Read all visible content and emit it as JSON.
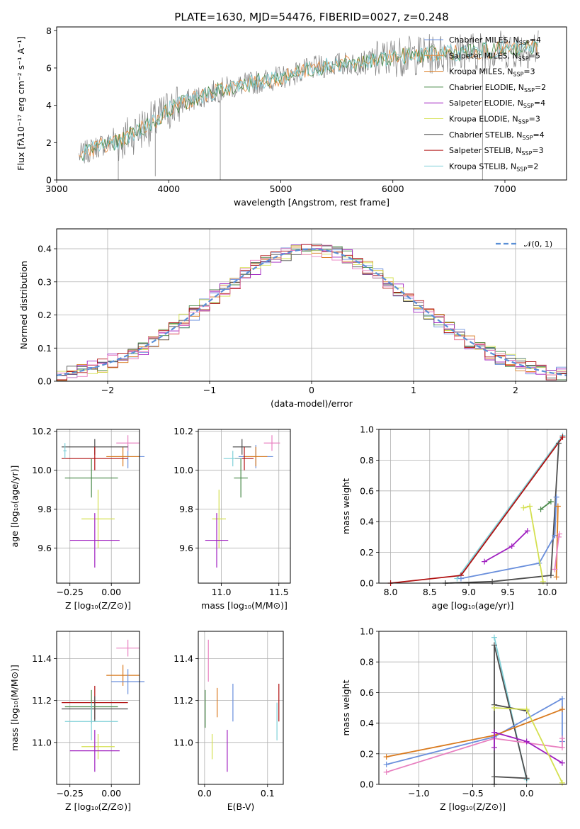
{
  "title": "PLATE=1630, MJD=54476, FIBERID=0027, z=0.248",
  "colors": {
    "Chabrier MILES": "#6a8fdc",
    "Salpeter MILES": "#e8883a",
    "Kroupa MILES": "#d97a1e",
    "Chabrier ELODIE": "#4a8a4a",
    "Salpeter ELODIE": "#a020c0",
    "Kroupa ELODIE": "#d4e050",
    "Chabrier STELIB": "#4d4d4d",
    "Salpeter STELIB": "#b01010",
    "Kroupa STELIB": "#7fd0d8",
    "Pink": "#e880c0",
    "Normal": "#5a8fd6"
  },
  "chart_data": [
    {
      "type": "line",
      "id": "spectrum",
      "title": "PLATE=1630, MJD=54476, FIBERID=0027, z=0.248",
      "xlabel": "wavelength [Angstrom, rest frame]",
      "ylabel": "Flux [fλ10⁻¹⁷ erg cm⁻² s⁻¹ A⁻¹]",
      "xlim": [
        3000,
        7550
      ],
      "ylim": [
        0,
        8.2
      ],
      "xticks": [
        3000,
        4000,
        5000,
        6000,
        7000
      ],
      "yticks": [
        0,
        2,
        4,
        6,
        8
      ],
      "continuum": [
        [
          3200,
          1.3
        ],
        [
          3400,
          1.9
        ],
        [
          3550,
          2.0
        ],
        [
          3700,
          2.6
        ],
        [
          3900,
          3.2
        ],
        [
          4000,
          3.8
        ],
        [
          4200,
          4.3
        ],
        [
          4500,
          4.9
        ],
        [
          5000,
          5.5
        ],
        [
          5300,
          6.0
        ],
        [
          5500,
          6.2
        ],
        [
          5800,
          6.3
        ],
        [
          6000,
          6.6
        ],
        [
          6500,
          6.8
        ],
        [
          7000,
          7.0
        ],
        [
          7300,
          7.1
        ]
      ],
      "legend": [
        {
          "name": "Chabrier MILES, N",
          "sub": "SSP",
          "n": "=4"
        },
        {
          "name": "Salpeter MILES, N",
          "sub": "SSP",
          "n": "=5"
        },
        {
          "name": "Kroupa MILES, N",
          "sub": "SSP",
          "n": "=3"
        },
        {
          "name": "Chabrier ELODIE, N",
          "sub": "SSP",
          "n": "=2"
        },
        {
          "name": "Salpeter ELODIE, N",
          "sub": "SSP",
          "n": "=4"
        },
        {
          "name": "Kroupa ELODIE, N",
          "sub": "SSP",
          "n": "=3"
        },
        {
          "name": "Chabrier STELIB, N",
          "sub": "SSP",
          "n": "=4"
        },
        {
          "name": "Salpeter STELIB, N",
          "sub": "SSP",
          "n": "=3"
        },
        {
          "name": "Kroupa STELIB, N",
          "sub": "SSP",
          "n": "=2"
        }
      ],
      "legend_position": "upper right"
    },
    {
      "type": "step",
      "id": "hist",
      "xlabel": "(data-model)/error",
      "ylabel": "Normed distribution",
      "xlim": [
        -2.5,
        2.5
      ],
      "ylim": [
        0,
        0.46
      ],
      "xticks": [
        -2,
        -1,
        0,
        1,
        2
      ],
      "yticks": [
        0.0,
        0.1,
        0.2,
        0.3,
        0.4
      ],
      "legend": "𝒩(0, 1)",
      "legend_position": "upper right",
      "grid": true
    },
    {
      "type": "errorbar",
      "id": "age_vs_Z",
      "xlabel": "Z [log₁₀(Z/Z⊙)]",
      "ylabel": "age  [log₁₀(age/yr)]",
      "xlim": [
        -0.33,
        0.17
      ],
      "ylim": [
        9.42,
        10.21
      ],
      "xticks": [
        -0.25,
        0.0
      ],
      "yticks": [
        9.6,
        9.8,
        10.0,
        10.2
      ],
      "grid": true,
      "points": [
        {
          "c": "Chabrier MILES",
          "x": 0.1,
          "y": 10.07,
          "xe": 0.1,
          "ye": 0.06
        },
        {
          "c": "Pink",
          "x": 0.1,
          "y": 10.14,
          "xe": 0.07,
          "ye": 0.04
        },
        {
          "c": "Kroupa MILES",
          "x": 0.07,
          "y": 10.07,
          "xe": 0.1,
          "ye": 0.05
        },
        {
          "c": "Chabrier STELIB",
          "x": -0.1,
          "y": 10.12,
          "xe": 0.2,
          "ye": 0.04
        },
        {
          "c": "Salpeter STELIB",
          "x": -0.1,
          "y": 10.06,
          "xe": 0.2,
          "ye": 0.06
        },
        {
          "c": "Kroupa STELIB",
          "x": -0.28,
          "y": 10.1,
          "xe": 0.01,
          "ye": 0.04
        },
        {
          "c": "Chabrier ELODIE",
          "x": -0.12,
          "y": 9.96,
          "xe": 0.16,
          "ye": 0.1
        },
        {
          "c": "Kroupa ELODIE",
          "x": -0.08,
          "y": 9.75,
          "xe": 0.1,
          "ye": 0.15
        },
        {
          "c": "Salpeter ELODIE",
          "x": -0.1,
          "y": 9.64,
          "xe": 0.15,
          "ye": 0.14
        }
      ]
    },
    {
      "type": "errorbar",
      "id": "age_vs_mass",
      "xlabel": "mass [log₁₀(M/M⊙)]",
      "ylabel": "",
      "xlim": [
        10.8,
        11.6
      ],
      "ylim": [
        9.42,
        10.21
      ],
      "xticks": [
        11.0,
        11.5
      ],
      "yticks": [
        9.6,
        9.8,
        10.0,
        10.2
      ],
      "grid": true,
      "points": [
        {
          "c": "Chabrier MILES",
          "x": 11.3,
          "y": 10.07,
          "xe": 0.15,
          "ye": 0.06
        },
        {
          "c": "Pink",
          "x": 11.44,
          "y": 10.14,
          "xe": 0.07,
          "ye": 0.04
        },
        {
          "c": "Kroupa MILES",
          "x": 11.3,
          "y": 10.07,
          "xe": 0.1,
          "ye": 0.05
        },
        {
          "c": "Chabrier STELIB",
          "x": 11.18,
          "y": 10.12,
          "xe": 0.08,
          "ye": 0.04
        },
        {
          "c": "Salpeter STELIB",
          "x": 11.2,
          "y": 10.06,
          "xe": 0.08,
          "ye": 0.06
        },
        {
          "c": "Kroupa STELIB",
          "x": 11.1,
          "y": 10.06,
          "xe": 0.08,
          "ye": 0.04
        },
        {
          "c": "Chabrier ELODIE",
          "x": 11.17,
          "y": 9.96,
          "xe": 0.06,
          "ye": 0.1
        },
        {
          "c": "Kroupa ELODIE",
          "x": 10.98,
          "y": 9.75,
          "xe": 0.06,
          "ye": 0.15
        },
        {
          "c": "Salpeter ELODIE",
          "x": 10.96,
          "y": 9.64,
          "xe": 0.1,
          "ye": 0.14
        }
      ]
    },
    {
      "type": "line",
      "id": "mw_vs_age",
      "xlabel": "age  [log₁₀(age/yr)]",
      "ylabel": "mass weight",
      "xlim": [
        7.85,
        10.25
      ],
      "ylim": [
        0,
        1.0
      ],
      "xticks": [
        8.0,
        8.5,
        9.0,
        9.5,
        10.0
      ],
      "yticks": [
        0.0,
        0.2,
        0.4,
        0.6,
        0.8,
        1.0
      ],
      "grid": true,
      "series": [
        {
          "c": "Kroupa STELIB",
          "points": [
            [
              8.85,
              0.03
            ],
            [
              10.2,
              0.96
            ]
          ]
        },
        {
          "c": "Salpeter STELIB",
          "points": [
            [
              8.0,
              0.0
            ],
            [
              8.9,
              0.05
            ],
            [
              10.2,
              0.95
            ]
          ]
        },
        {
          "c": "Chabrier STELIB",
          "points": [
            [
              8.7,
              0.0
            ],
            [
              9.3,
              0.01
            ],
            [
              10.05,
              0.05
            ],
            [
              10.15,
              0.91
            ]
          ]
        },
        {
          "c": "Chabrier MILES",
          "points": [
            [
              8.9,
              0.03
            ],
            [
              9.9,
              0.13
            ],
            [
              10.1,
              0.31
            ],
            [
              10.12,
              0.56
            ]
          ]
        },
        {
          "c": "Kroupa MILES",
          "points": [
            [
              10.12,
              0.04
            ],
            [
              10.14,
              0.5
            ]
          ]
        },
        {
          "c": "Pink",
          "points": [
            [
              10.1,
              0.09
            ],
            [
              10.15,
              0.3
            ],
            [
              10.16,
              0.32
            ]
          ]
        },
        {
          "c": "Salpeter ELODIE",
          "points": [
            [
              9.2,
              0.14
            ],
            [
              9.55,
              0.24
            ],
            [
              9.75,
              0.34
            ]
          ]
        },
        {
          "c": "Kroupa ELODIE",
          "points": [
            [
              9.7,
              0.49
            ],
            [
              9.78,
              0.5
            ],
            [
              9.95,
              0.01
            ]
          ]
        },
        {
          "c": "Chabrier ELODIE",
          "points": [
            [
              9.92,
              0.48
            ],
            [
              10.05,
              0.53
            ]
          ]
        }
      ]
    },
    {
      "type": "errorbar",
      "id": "mass_vs_Z",
      "xlabel": "Z [log₁₀(Z/Z⊙)]",
      "ylabel": "mass [log₁₀(M/M⊙)]",
      "xlim": [
        -0.33,
        0.17
      ],
      "ylim": [
        10.8,
        11.53
      ],
      "xticks": [
        -0.25,
        0.0
      ],
      "yticks": [
        11.0,
        11.2,
        11.4
      ],
      "grid": true,
      "points": [
        {
          "c": "Pink",
          "x": 0.1,
          "y": 11.45,
          "xe": 0.07,
          "ye": 0.04
        },
        {
          "c": "Kroupa MILES",
          "x": 0.07,
          "y": 11.32,
          "xe": 0.1,
          "ye": 0.05
        },
        {
          "c": "Chabrier MILES",
          "x": 0.1,
          "y": 11.29,
          "xe": 0.1,
          "ye": 0.06
        },
        {
          "c": "Salpeter STELIB",
          "x": -0.1,
          "y": 11.19,
          "xe": 0.2,
          "ye": 0.08
        },
        {
          "c": "Chabrier STELIB",
          "x": -0.1,
          "y": 11.16,
          "xe": 0.2,
          "ye": 0.06
        },
        {
          "c": "Chabrier ELODIE",
          "x": -0.12,
          "y": 11.17,
          "xe": 0.16,
          "ye": 0.08
        },
        {
          "c": "Kroupa STELIB",
          "x": -0.12,
          "y": 11.1,
          "xe": 0.16,
          "ye": 0.09
        },
        {
          "c": "Kroupa ELODIE",
          "x": -0.08,
          "y": 10.98,
          "xe": 0.1,
          "ye": 0.06
        },
        {
          "c": "Salpeter ELODIE",
          "x": -0.1,
          "y": 10.96,
          "xe": 0.15,
          "ye": 0.1
        }
      ]
    },
    {
      "type": "errorbar",
      "id": "mass_vs_ebv",
      "xlabel": "E(B-V)",
      "ylabel": "",
      "xlim": [
        -0.01,
        0.125
      ],
      "ylim": [
        10.8,
        11.53
      ],
      "xticks": [
        0.0,
        0.1
      ],
      "yticks": [
        11.0,
        11.2,
        11.4
      ],
      "grid": true,
      "points": [
        {
          "c": "Pink",
          "x": 0.006,
          "y": 11.39,
          "xe": 0,
          "ye": 0.1
        },
        {
          "c": "Chabrier MILES",
          "x": 0.045,
          "y": 11.19,
          "xe": 0,
          "ye": 0.09
        },
        {
          "c": "Kroupa MILES",
          "x": 0.02,
          "y": 11.19,
          "xe": 0,
          "ye": 0.07
        },
        {
          "c": "Chabrier ELODIE",
          "x": 0.001,
          "y": 11.16,
          "xe": 0,
          "ye": 0.09
        },
        {
          "c": "Kroupa ELODIE",
          "x": 0.012,
          "y": 10.98,
          "xe": 0,
          "ye": 0.06
        },
        {
          "c": "Salpeter ELODIE",
          "x": 0.036,
          "y": 10.96,
          "xe": 0,
          "ye": 0.1
        },
        {
          "c": "Salpeter STELIB",
          "x": 0.118,
          "y": 11.19,
          "xe": 0,
          "ye": 0.09
        },
        {
          "c": "Kroupa STELIB",
          "x": 0.115,
          "y": 11.1,
          "xe": 0,
          "ye": 0.09
        }
      ]
    },
    {
      "type": "line",
      "id": "mw_vs_Z",
      "xlabel": "Z [log₁₀(Z/Z⊙)]",
      "ylabel": "mass weight",
      "xlim": [
        -1.37,
        0.37
      ],
      "ylim": [
        0,
        1.0
      ],
      "xticks": [
        -1.0,
        -0.5,
        0.0
      ],
      "yticks": [
        0.0,
        0.2,
        0.4,
        0.6,
        0.8,
        1.0
      ],
      "grid": true,
      "series": [
        {
          "c": "Kroupa STELIB",
          "points": [
            [
              -0.3,
              0.96
            ],
            [
              0.0,
              0.03
            ]
          ]
        },
        {
          "c": "Chabrier STELIB",
          "points": [
            [
              -0.3,
              0.0
            ],
            [
              -0.3,
              0.91
            ],
            [
              0.0,
              0.04
            ],
            [
              -0.3,
              0.05
            ],
            [
              -0.3,
              0.52
            ],
            [
              0.0,
              0.48
            ]
          ]
        },
        {
          "c": "Chabrier MILES",
          "points": [
            [
              -1.3,
              0.13
            ],
            [
              -0.3,
              0.31
            ],
            [
              0.33,
              0.56
            ],
            [
              0.33,
              0.28
            ]
          ]
        },
        {
          "c": "Kroupa MILES",
          "points": [
            [
              -1.3,
              0.18
            ],
            [
              -0.3,
              0.32
            ],
            [
              0.33,
              0.49
            ]
          ]
        },
        {
          "c": "Pink",
          "points": [
            [
              -1.3,
              0.08
            ],
            [
              -0.3,
              0.3
            ],
            [
              0.33,
              0.24
            ],
            [
              0.33,
              0.3
            ]
          ]
        },
        {
          "c": "Salpeter ELODIE",
          "points": [
            [
              -0.3,
              0.24
            ],
            [
              -0.3,
              0.34
            ],
            [
              0.0,
              0.28
            ],
            [
              0.33,
              0.14
            ]
          ]
        },
        {
          "c": "Kroupa ELODIE",
          "points": [
            [
              -0.3,
              0.5
            ],
            [
              0.0,
              0.49
            ],
            [
              0.33,
              0.01
            ]
          ]
        }
      ]
    }
  ]
}
